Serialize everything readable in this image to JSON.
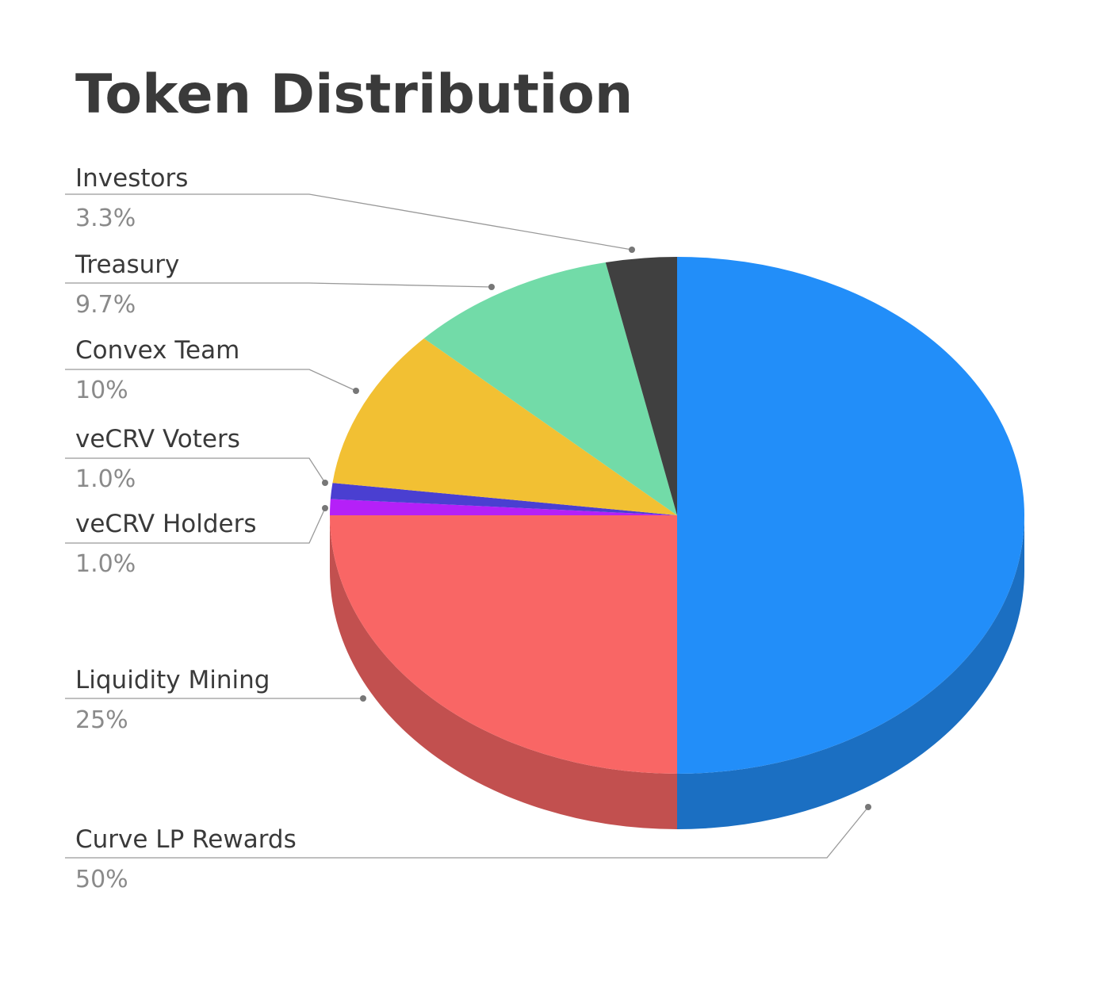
{
  "chart_data": {
    "type": "pie",
    "title": "Token Distribution",
    "categories": [
      "Curve LP Rewards",
      "Liquidity Mining",
      "veCRV Holders",
      "veCRV Voters",
      "Convex Team",
      "Treasury",
      "Investors"
    ],
    "values": [
      50,
      25,
      1,
      1,
      10,
      9.7,
      3.3
    ],
    "value_labels": [
      "50%",
      "25%",
      "1.0%",
      "1.0%",
      "10%",
      "9.7%",
      "3.3%"
    ],
    "colors": [
      "#228ef9",
      "#f96665",
      "#b520f8",
      "#4a3fd1",
      "#f2c033",
      "#72dba8",
      "#404040"
    ]
  }
}
